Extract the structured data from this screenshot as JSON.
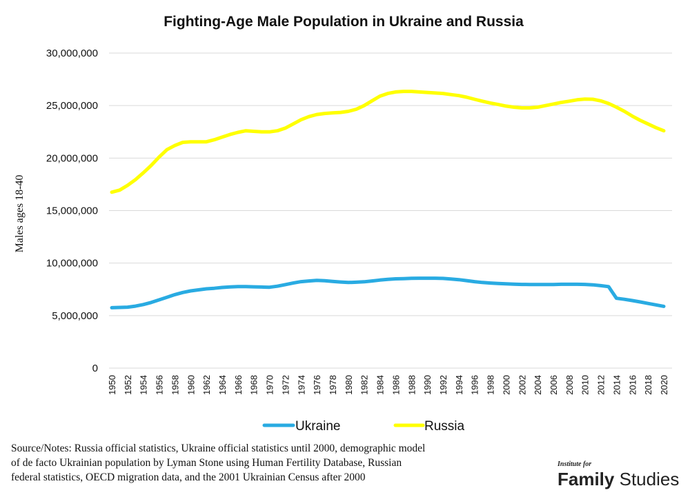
{
  "chart_data": {
    "type": "line",
    "title": "Fighting-Age Male Population in Ukraine and Russia",
    "ylabel": "Males ages 18-40",
    "xlabel": "",
    "ylim": [
      0,
      30000000
    ],
    "yticks": [
      0,
      5000000,
      10000000,
      15000000,
      20000000,
      25000000,
      30000000
    ],
    "ytick_labels": [
      "0",
      "5,000,000",
      "10,000,000",
      "15,000,000",
      "20,000,000",
      "25,000,000",
      "30,000,000"
    ],
    "grid": true,
    "legend_position": "bottom",
    "x": [
      1950,
      1951,
      1952,
      1953,
      1954,
      1955,
      1956,
      1957,
      1958,
      1959,
      1960,
      1961,
      1962,
      1963,
      1964,
      1965,
      1966,
      1967,
      1968,
      1969,
      1970,
      1971,
      1972,
      1973,
      1974,
      1975,
      1976,
      1977,
      1978,
      1979,
      1980,
      1981,
      1982,
      1983,
      1984,
      1985,
      1986,
      1987,
      1988,
      1989,
      1990,
      1991,
      1992,
      1993,
      1994,
      1995,
      1996,
      1997,
      1998,
      1999,
      2000,
      2001,
      2002,
      2003,
      2004,
      2005,
      2006,
      2007,
      2008,
      2009,
      2010,
      2011,
      2012,
      2013,
      2014,
      2015,
      2016,
      2017,
      2018,
      2019,
      2020
    ],
    "xtick_labels": [
      "1950",
      "1952",
      "1954",
      "1956",
      "1958",
      "1960",
      "1962",
      "1964",
      "1966",
      "1968",
      "1970",
      "1972",
      "1974",
      "1976",
      "1978",
      "1980",
      "1982",
      "1984",
      "1986",
      "1988",
      "1990",
      "1992",
      "1994",
      "1996",
      "1998",
      "2000",
      "2002",
      "2004",
      "2006",
      "2008",
      "2010",
      "2012",
      "2014",
      "2016",
      "2018",
      "2020"
    ],
    "series": [
      {
        "name": "Ukraine",
        "color": "#29abe2",
        "values": [
          5750000,
          5780000,
          5800000,
          5900000,
          6050000,
          6250000,
          6500000,
          6750000,
          7000000,
          7200000,
          7350000,
          7450000,
          7550000,
          7600000,
          7680000,
          7730000,
          7760000,
          7760000,
          7740000,
          7720000,
          7700000,
          7800000,
          7950000,
          8100000,
          8230000,
          8300000,
          8350000,
          8320000,
          8250000,
          8200000,
          8150000,
          8180000,
          8220000,
          8300000,
          8380000,
          8450000,
          8500000,
          8520000,
          8550000,
          8560000,
          8560000,
          8560000,
          8540000,
          8480000,
          8420000,
          8330000,
          8230000,
          8150000,
          8100000,
          8060000,
          8020000,
          7990000,
          7970000,
          7960000,
          7960000,
          7960000,
          7960000,
          7980000,
          7980000,
          7980000,
          7970000,
          7930000,
          7850000,
          7760000,
          6650000,
          6550000,
          6430000,
          6300000,
          6160000,
          6020000,
          5880000
        ]
      },
      {
        "name": "Russia",
        "color": "#ffff00",
        "values": [
          16750000,
          16950000,
          17400000,
          17950000,
          18600000,
          19300000,
          20100000,
          20800000,
          21200000,
          21500000,
          21550000,
          21550000,
          21550000,
          21750000,
          22000000,
          22250000,
          22450000,
          22600000,
          22550000,
          22500000,
          22500000,
          22600000,
          22850000,
          23250000,
          23650000,
          23950000,
          24150000,
          24250000,
          24300000,
          24350000,
          24450000,
          24650000,
          25000000,
          25450000,
          25900000,
          26150000,
          26300000,
          26350000,
          26350000,
          26300000,
          26250000,
          26200000,
          26150000,
          26050000,
          25950000,
          25800000,
          25600000,
          25420000,
          25250000,
          25100000,
          24950000,
          24850000,
          24780000,
          24780000,
          24850000,
          25000000,
          25150000,
          25300000,
          25420000,
          25550000,
          25620000,
          25600000,
          25450000,
          25200000,
          24850000,
          24450000,
          24000000,
          23600000,
          23250000,
          22900000,
          22600000
        ]
      }
    ]
  },
  "source_note": {
    "line1": "Source/Notes: Russia official statistics, Ukraine official statistics until 2000, demographic model",
    "line2": "of de facto Ukrainian population by Lyman Stone using Human Fertility Database, Russian",
    "line3": "federal statistics, OECD migration data, and the 2001 Ukrainian Census after 2000"
  },
  "logo": {
    "small": "Institute for",
    "big_bold": "Family",
    "big_regular": "Studies"
  }
}
